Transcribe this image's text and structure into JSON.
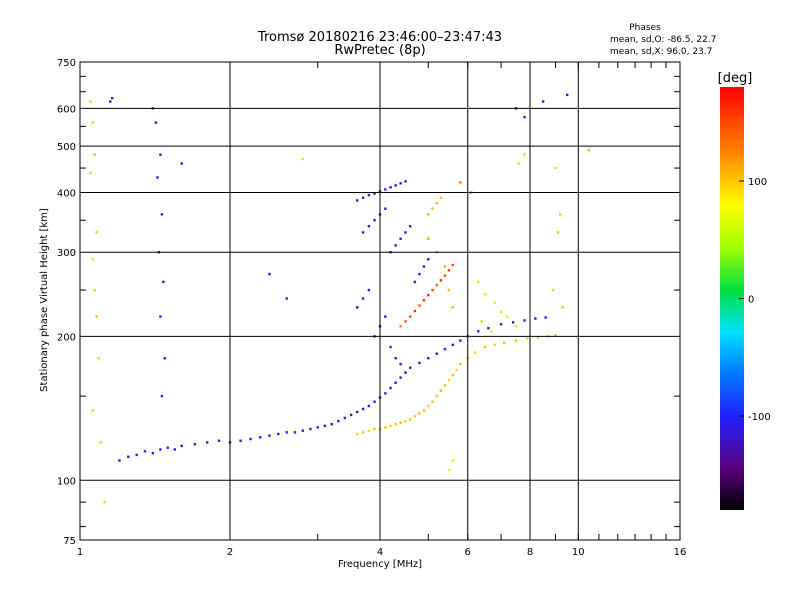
{
  "chart_data": {
    "type": "scatter",
    "title": "Tromsø 20180216 23:46:00–23:47:43",
    "subtitle": "RwPretec (8p)",
    "xlabel": "Frequency [MHz]",
    "ylabel": "Stationary phase Virtual Height [km]",
    "x_scale": "log",
    "y_scale": "log",
    "xlim": [
      1,
      16
    ],
    "ylim": [
      75,
      750
    ],
    "x_ticks": [
      1,
      2,
      4,
      6,
      8,
      10,
      16
    ],
    "x_tick_labels": [
      "1",
      "2",
      "4",
      "6",
      "8",
      "10",
      "16"
    ],
    "y_ticks": [
      75,
      100,
      200,
      300,
      400,
      500,
      600,
      750
    ],
    "y_tick_labels": [
      "75",
      "100",
      "200",
      "300",
      "400",
      "500",
      "600",
      "750"
    ],
    "grid": true,
    "info": {
      "heading": "Phases",
      "line1": "mean, sd,O: -86.5, 22.7",
      "line2": "mean, sd,X: 96.0, 23.7"
    },
    "colorbar": {
      "label": "[deg]",
      "range": [
        -180,
        180
      ],
      "ticks": [
        100,
        0,
        -100
      ],
      "tick_labels": [
        "100",
        "0",
        "-100"
      ]
    },
    "series": [
      {
        "points": [
          [
            1.2,
            110,
            -110
          ],
          [
            1.25,
            112,
            -112
          ],
          [
            1.3,
            113,
            -105
          ],
          [
            1.35,
            115,
            -95
          ],
          [
            1.4,
            114,
            -120
          ],
          [
            1.45,
            116,
            -100
          ],
          [
            1.5,
            117,
            -108
          ],
          [
            1.55,
            116,
            -115
          ],
          [
            1.6,
            118,
            -118
          ],
          [
            1.7,
            119,
            -112
          ],
          [
            1.8,
            120,
            -105
          ],
          [
            1.9,
            121,
            -110
          ],
          [
            2.0,
            120,
            -118
          ],
          [
            2.1,
            121,
            -112
          ],
          [
            2.2,
            122,
            -100
          ],
          [
            2.3,
            123,
            -108
          ],
          [
            2.4,
            124,
            -115
          ],
          [
            2.5,
            125,
            -110
          ],
          [
            2.6,
            126,
            -100
          ],
          [
            2.7,
            126,
            -112
          ],
          [
            2.8,
            127,
            -108
          ],
          [
            2.9,
            128,
            -115
          ],
          [
            3.0,
            129,
            -110
          ],
          [
            3.1,
            130,
            -120
          ],
          [
            3.2,
            131,
            -112
          ],
          [
            3.3,
            133,
            -105
          ],
          [
            3.4,
            135,
            -100
          ],
          [
            3.5,
            137,
            -110
          ],
          [
            3.6,
            139,
            -118
          ],
          [
            3.7,
            141,
            -112
          ],
          [
            3.8,
            143,
            -108
          ],
          [
            3.9,
            146,
            -115
          ],
          [
            4.0,
            149,
            -110
          ],
          [
            4.1,
            152,
            -100
          ],
          [
            4.2,
            156,
            -112
          ],
          [
            4.3,
            160,
            -108
          ],
          [
            4.4,
            164,
            -115
          ],
          [
            4.5,
            168,
            -120
          ],
          [
            4.6,
            172,
            -110
          ],
          [
            4.8,
            176,
            -112
          ],
          [
            5.0,
            180,
            -118
          ],
          [
            5.2,
            184,
            -110
          ],
          [
            5.4,
            188,
            -105
          ],
          [
            5.6,
            192,
            -115
          ],
          [
            5.8,
            196,
            -120
          ],
          [
            6.0,
            200,
            -112
          ],
          [
            6.3,
            205,
            -108
          ],
          [
            6.6,
            208,
            -115
          ],
          [
            7.0,
            212,
            -120
          ],
          [
            7.4,
            214,
            -112
          ],
          [
            7.8,
            216,
            -110
          ],
          [
            8.2,
            218,
            -118
          ],
          [
            8.6,
            219,
            -112
          ],
          [
            3.6,
            385,
            -120
          ],
          [
            3.7,
            390,
            -112
          ],
          [
            3.8,
            395,
            -108
          ],
          [
            3.9,
            398,
            -115
          ],
          [
            4.0,
            402,
            -110
          ],
          [
            4.1,
            406,
            -105
          ],
          [
            4.2,
            410,
            -118
          ],
          [
            4.3,
            414,
            -112
          ],
          [
            4.4,
            418,
            -108
          ],
          [
            4.5,
            422,
            -115
          ],
          [
            3.7,
            330,
            -110
          ],
          [
            3.8,
            340,
            -120
          ],
          [
            3.9,
            350,
            -112
          ],
          [
            4.0,
            360,
            -108
          ],
          [
            4.1,
            370,
            -115
          ],
          [
            4.2,
            300,
            -110
          ],
          [
            4.3,
            310,
            -120
          ],
          [
            4.4,
            320,
            -112
          ],
          [
            4.5,
            330,
            -105
          ],
          [
            4.6,
            340,
            -115
          ],
          [
            4.7,
            260,
            -110
          ],
          [
            4.8,
            270,
            -118
          ],
          [
            4.9,
            280,
            -112
          ],
          [
            5.0,
            290,
            -108
          ],
          [
            3.6,
            230,
            -112
          ],
          [
            3.7,
            240,
            -108
          ],
          [
            3.8,
            250,
            -115
          ],
          [
            3.9,
            200,
            -110
          ],
          [
            4.0,
            210,
            -118
          ],
          [
            4.1,
            220,
            -112
          ],
          [
            4.2,
            190,
            -105
          ],
          [
            4.3,
            180,
            -115
          ],
          [
            4.4,
            175,
            -110
          ],
          [
            1.4,
            600,
            -105
          ],
          [
            1.42,
            560,
            -110
          ],
          [
            1.45,
            480,
            -115
          ],
          [
            1.43,
            430,
            -112
          ],
          [
            1.46,
            360,
            -108
          ],
          [
            1.44,
            300,
            -110
          ],
          [
            1.47,
            260,
            -115
          ],
          [
            1.45,
            220,
            -112
          ],
          [
            1.48,
            180,
            -110
          ],
          [
            1.46,
            150,
            -108
          ],
          [
            1.6,
            460,
            -112
          ],
          [
            1.15,
            620,
            -110
          ],
          [
            1.16,
            630,
            -115
          ],
          [
            2.4,
            270,
            -110
          ],
          [
            2.6,
            240,
            -112
          ],
          [
            8.5,
            620,
            -110
          ],
          [
            9.5,
            640,
            -115
          ],
          [
            7.5,
            600,
            -112
          ],
          [
            7.8,
            575,
            -108
          ]
        ]
      },
      {
        "points": [
          [
            3.6,
            125,
            95
          ],
          [
            3.7,
            126,
            100
          ],
          [
            3.8,
            127,
            92
          ],
          [
            3.9,
            128,
            105
          ],
          [
            4.0,
            128,
            98
          ],
          [
            4.1,
            129,
            102
          ],
          [
            4.2,
            130,
            95
          ],
          [
            4.3,
            131,
            100
          ],
          [
            4.4,
            132,
            108
          ],
          [
            4.5,
            133,
            96
          ],
          [
            4.6,
            134,
            102
          ],
          [
            4.7,
            136,
            98
          ],
          [
            4.8,
            138,
            105
          ],
          [
            4.9,
            140,
            100
          ],
          [
            5.0,
            143,
            95
          ],
          [
            5.1,
            146,
            102
          ],
          [
            5.2,
            150,
            98
          ],
          [
            5.3,
            154,
            105
          ],
          [
            5.4,
            158,
            100
          ],
          [
            5.5,
            162,
            96
          ],
          [
            5.6,
            166,
            102
          ],
          [
            5.7,
            170,
            98
          ],
          [
            5.8,
            175,
            105
          ],
          [
            6.0,
            180,
            100
          ],
          [
            6.2,
            185,
            96
          ],
          [
            6.5,
            190,
            102
          ],
          [
            6.8,
            192,
            98
          ],
          [
            7.1,
            194,
            105
          ],
          [
            7.5,
            196,
            100
          ],
          [
            7.9,
            198,
            96
          ],
          [
            8.3,
            199,
            102
          ],
          [
            8.7,
            200,
            98
          ],
          [
            9.0,
            201,
            105
          ],
          [
            4.4,
            210,
            120
          ],
          [
            4.5,
            215,
            140
          ],
          [
            4.6,
            220,
            150
          ],
          [
            4.7,
            226,
            160
          ],
          [
            4.8,
            232,
            145
          ],
          [
            4.9,
            238,
            155
          ],
          [
            5.0,
            244,
            165
          ],
          [
            5.1,
            250,
            150
          ],
          [
            5.2,
            256,
            140
          ],
          [
            5.3,
            262,
            160
          ],
          [
            5.4,
            268,
            145
          ],
          [
            5.5,
            275,
            155
          ],
          [
            5.6,
            282,
            150
          ],
          [
            5.0,
            360,
            110
          ],
          [
            5.1,
            370,
            105
          ],
          [
            5.2,
            380,
            112
          ],
          [
            5.3,
            390,
            100
          ],
          [
            5.0,
            320,
            115
          ],
          [
            5.2,
            300,
            108
          ],
          [
            5.4,
            280,
            112
          ],
          [
            5.5,
            250,
            105
          ],
          [
            5.6,
            230,
            110
          ],
          [
            6.3,
            260,
            60
          ],
          [
            6.5,
            245,
            55
          ],
          [
            6.8,
            235,
            65
          ],
          [
            7.0,
            225,
            50
          ],
          [
            6.4,
            215,
            45
          ],
          [
            6.7,
            205,
            55
          ],
          [
            7.2,
            220,
            60
          ],
          [
            7.5,
            210,
            50
          ],
          [
            1.05,
            620,
            95
          ],
          [
            1.06,
            560,
            100
          ],
          [
            1.07,
            480,
            105
          ],
          [
            1.05,
            440,
            98
          ],
          [
            1.08,
            330,
            102
          ],
          [
            1.06,
            290,
            95
          ],
          [
            1.07,
            250,
            100
          ],
          [
            1.08,
            220,
            105
          ],
          [
            1.09,
            180,
            98
          ],
          [
            1.06,
            140,
            102
          ],
          [
            1.1,
            120,
            100
          ],
          [
            1.12,
            90,
            95
          ],
          [
            9.0,
            450,
            95
          ],
          [
            9.2,
            360,
            100
          ],
          [
            9.1,
            330,
            105
          ],
          [
            8.9,
            250,
            98
          ],
          [
            9.3,
            230,
            102
          ],
          [
            7.6,
            460,
            95
          ],
          [
            7.8,
            480,
            100
          ],
          [
            10.5,
            490,
            105
          ],
          [
            5.6,
            110,
            55
          ],
          [
            5.5,
            105,
            60
          ],
          [
            2.8,
            470,
            50
          ],
          [
            5.8,
            420,
            130
          ],
          [
            6.1,
            400,
            125
          ]
        ]
      }
    ]
  }
}
